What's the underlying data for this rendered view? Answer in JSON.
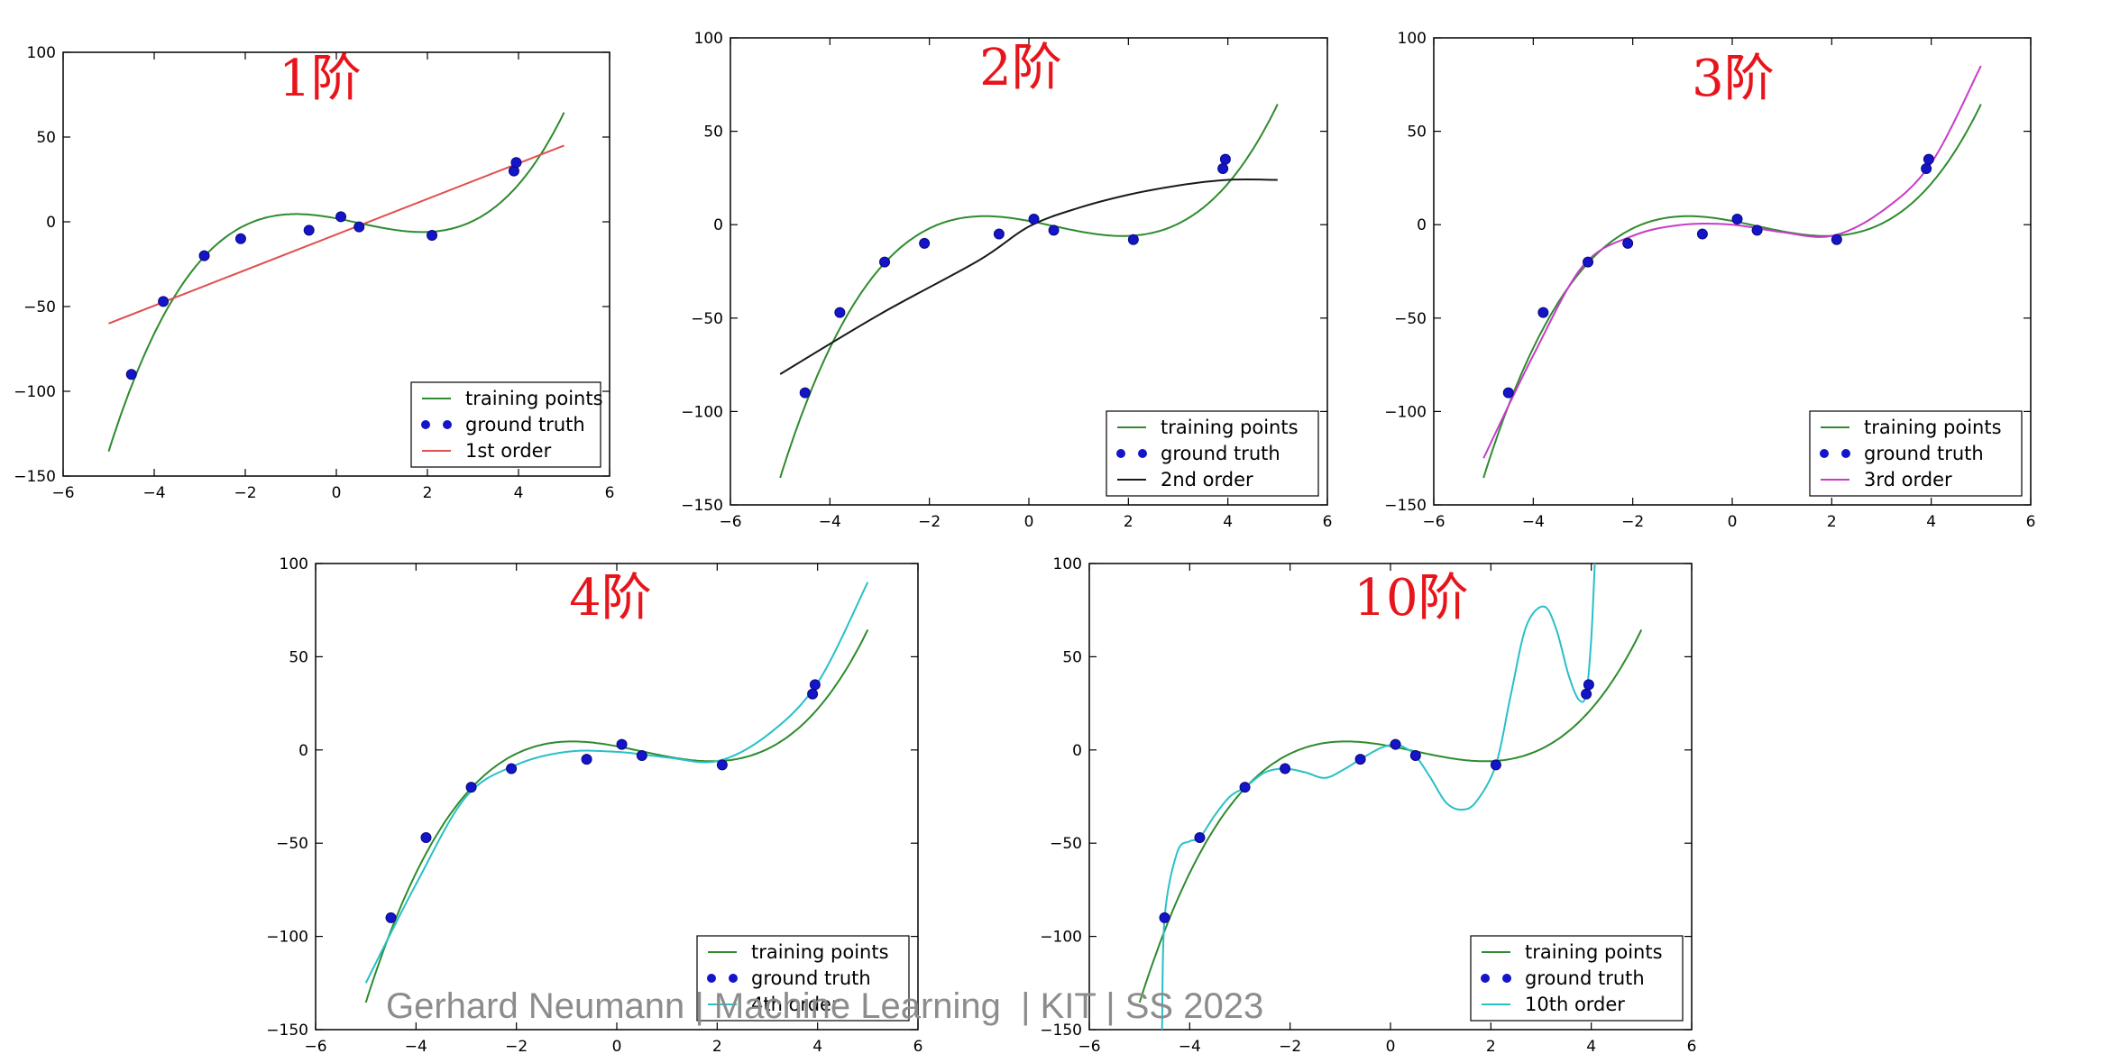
{
  "footer": "Gerhard Neumann | Machine Learning  | KIT | SS 2023",
  "legend_common": [
    "training points",
    "ground truth"
  ],
  "colors": {
    "training_points_line": "#2e8b2e",
    "ground_truth_points": "#1414c8",
    "title": "#e8141b"
  },
  "chart_data": [
    {
      "type": "line",
      "title": "1阶",
      "degree": 1,
      "fit_label": "1st order",
      "fit_color": "#e05050",
      "xlim": [
        -6,
        6
      ],
      "ylim": [
        -150,
        100
      ],
      "xticks": [
        -6,
        -4,
        -2,
        0,
        2,
        4,
        6
      ],
      "yticks": [
        -150,
        -100,
        -50,
        0,
        50,
        100
      ],
      "legend_position": "lower right",
      "training_curve": "y = x^3 - 1.5x^2 - 5x + 2, x from -5 to 5",
      "ground_truth": [
        [
          -4.5,
          -90
        ],
        [
          -3.8,
          -47
        ],
        [
          -2.9,
          -20
        ],
        [
          -2.1,
          -10
        ],
        [
          -0.6,
          -5
        ],
        [
          0.1,
          3
        ],
        [
          0.5,
          -3
        ],
        [
          2.1,
          -8
        ],
        [
          3.9,
          30
        ],
        [
          3.95,
          35
        ]
      ],
      "fit_endpoints": [
        [
          -5,
          -60
        ],
        [
          5,
          45
        ]
      ]
    },
    {
      "type": "line",
      "title": "2阶",
      "degree": 2,
      "fit_label": "2nd order",
      "fit_color": "#1a1a1a",
      "xlim": [
        -6,
        6
      ],
      "ylim": [
        -150,
        100
      ],
      "xticks": [
        -6,
        -4,
        -2,
        0,
        2,
        4,
        6
      ],
      "yticks": [
        -150,
        -100,
        -50,
        0,
        50,
        100
      ],
      "legend_position": "lower right",
      "training_curve": "y = x^3 - 1.5x^2 - 5x + 2, x from -5 to 5",
      "ground_truth": [
        [
          -4.5,
          -90
        ],
        [
          -3.8,
          -47
        ],
        [
          -2.9,
          -20
        ],
        [
          -2.1,
          -10
        ],
        [
          -0.6,
          -5
        ],
        [
          0.1,
          3
        ],
        [
          0.5,
          -3
        ],
        [
          2.1,
          -8
        ],
        [
          3.9,
          30
        ],
        [
          3.95,
          35
        ]
      ],
      "fit_points": [
        [
          -5,
          -80
        ],
        [
          -3,
          -48
        ],
        [
          -1,
          -19
        ],
        [
          0,
          -1
        ],
        [
          1,
          9
        ],
        [
          2,
          16
        ],
        [
          3,
          21
        ],
        [
          4,
          24
        ],
        [
          5,
          24
        ]
      ]
    },
    {
      "type": "line",
      "title": "3阶",
      "degree": 3,
      "fit_label": "3rd order",
      "fit_color": "#c83cc8",
      "xlim": [
        -6,
        6
      ],
      "ylim": [
        -150,
        100
      ],
      "xticks": [
        -6,
        -4,
        -2,
        0,
        2,
        4,
        6
      ],
      "yticks": [
        -150,
        -100,
        -50,
        0,
        50,
        100
      ],
      "legend_position": "lower right",
      "training_curve": "y = x^3 - 1.5x^2 - 5x + 2, x from -5 to 5",
      "ground_truth": [
        [
          -4.5,
          -90
        ],
        [
          -3.8,
          -47
        ],
        [
          -2.9,
          -20
        ],
        [
          -2.1,
          -10
        ],
        [
          -0.6,
          -5
        ],
        [
          0.1,
          3
        ],
        [
          0.5,
          -3
        ],
        [
          2.1,
          -8
        ],
        [
          3.9,
          30
        ],
        [
          3.95,
          35
        ]
      ],
      "fit_points": [
        [
          -5,
          -125
        ],
        [
          -4,
          -70
        ],
        [
          -3,
          -22
        ],
        [
          -2,
          -6
        ],
        [
          -1,
          0
        ],
        [
          0,
          0
        ],
        [
          1,
          -4
        ],
        [
          2,
          -6
        ],
        [
          3,
          7
        ],
        [
          4,
          33
        ],
        [
          5,
          85
        ]
      ]
    },
    {
      "type": "line",
      "title": "4阶",
      "degree": 4,
      "fit_label": "4th order",
      "fit_color": "#28c0c8",
      "xlim": [
        -6,
        6
      ],
      "ylim": [
        -150,
        100
      ],
      "xticks": [
        -6,
        -4,
        -2,
        0,
        2,
        4,
        6
      ],
      "yticks": [
        -150,
        -100,
        -50,
        0,
        50,
        100
      ],
      "legend_position": "lower right",
      "training_curve": "y = x^3 - 1.5x^2 - 5x + 2, x from -5 to 5",
      "ground_truth": [
        [
          -4.5,
          -90
        ],
        [
          -3.8,
          -47
        ],
        [
          -2.9,
          -20
        ],
        [
          -2.1,
          -10
        ],
        [
          -0.6,
          -5
        ],
        [
          0.1,
          3
        ],
        [
          0.5,
          -3
        ],
        [
          2.1,
          -8
        ],
        [
          3.9,
          30
        ],
        [
          3.95,
          35
        ]
      ],
      "fit_points": [
        [
          -5,
          -125
        ],
        [
          -4,
          -72
        ],
        [
          -3,
          -25
        ],
        [
          -2,
          -8
        ],
        [
          -1,
          -1
        ],
        [
          0,
          -1
        ],
        [
          1,
          -4
        ],
        [
          2,
          -6
        ],
        [
          3,
          8
        ],
        [
          4,
          36
        ],
        [
          5,
          90
        ]
      ]
    },
    {
      "type": "line",
      "title": "10阶",
      "degree": 10,
      "fit_label": "10th order",
      "fit_color": "#28c0c8",
      "xlim": [
        -6,
        6
      ],
      "ylim": [
        -150,
        100
      ],
      "xticks": [
        -6,
        -4,
        -2,
        0,
        2,
        4,
        6
      ],
      "yticks": [
        -150,
        -100,
        -50,
        0,
        50,
        100
      ],
      "legend_position": "lower right",
      "training_curve": "y = x^3 - 1.5x^2 - 5x + 2, x from -5 to 5",
      "ground_truth": [
        [
          -4.5,
          -90
        ],
        [
          -3.8,
          -47
        ],
        [
          -2.9,
          -20
        ],
        [
          -2.1,
          -10
        ],
        [
          -0.6,
          -5
        ],
        [
          0.1,
          3
        ],
        [
          0.5,
          -3
        ],
        [
          2.1,
          -8
        ],
        [
          3.9,
          30
        ],
        [
          3.95,
          35
        ]
      ],
      "fit_points": [
        [
          -4.55,
          -150
        ],
        [
          -4.5,
          -90
        ],
        [
          -4.25,
          -55
        ],
        [
          -4,
          -49
        ],
        [
          -3.8,
          -47
        ],
        [
          -3.5,
          -35
        ],
        [
          -3.2,
          -25
        ],
        [
          -2.9,
          -20
        ],
        [
          -2.5,
          -12
        ],
        [
          -2.1,
          -10
        ],
        [
          -1.7,
          -12
        ],
        [
          -1.3,
          -15
        ],
        [
          -0.9,
          -10
        ],
        [
          -0.6,
          -5
        ],
        [
          -0.2,
          1
        ],
        [
          0.1,
          3
        ],
        [
          0.3,
          1
        ],
        [
          0.5,
          -3
        ],
        [
          0.8,
          -15
        ],
        [
          1.1,
          -28
        ],
        [
          1.4,
          -32
        ],
        [
          1.7,
          -28
        ],
        [
          2.1,
          -8
        ],
        [
          2.4,
          30
        ],
        [
          2.7,
          66
        ],
        [
          3.05,
          77
        ],
        [
          3.3,
          65
        ],
        [
          3.55,
          40
        ],
        [
          3.75,
          27
        ],
        [
          3.9,
          30
        ],
        [
          4.0,
          60
        ],
        [
          4.07,
          100
        ]
      ]
    }
  ]
}
